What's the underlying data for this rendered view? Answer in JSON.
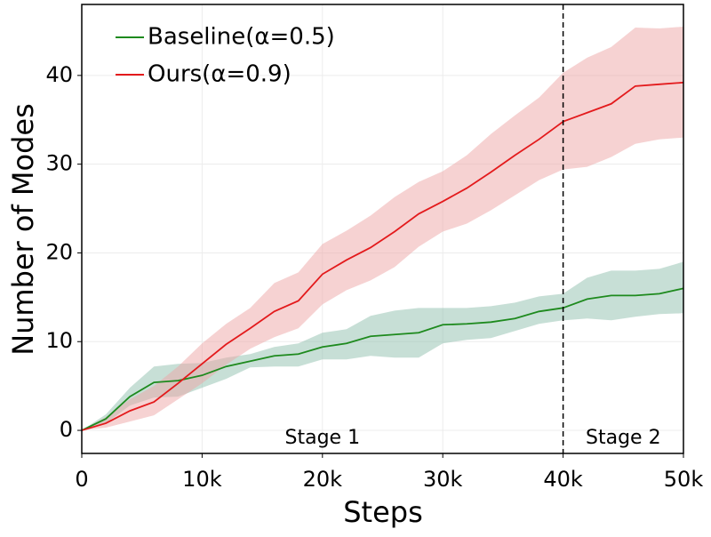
{
  "chart_data": {
    "type": "line_band",
    "xlabel": "Steps",
    "ylabel": "Number of Modes",
    "x": [
      0,
      2000,
      4000,
      6000,
      8000,
      10000,
      12000,
      14000,
      16000,
      18000,
      20000,
      22000,
      24000,
      26000,
      28000,
      30000,
      32000,
      34000,
      36000,
      38000,
      40000,
      42000,
      44000,
      46000,
      48000,
      50000
    ],
    "series": [
      {
        "name": "Baseline(α=0.5)",
        "color": "#1e8a1e",
        "band_color": "#8fbfae",
        "values": [
          0,
          1.3,
          3.8,
          5.4,
          5.6,
          6.2,
          7.2,
          7.8,
          8.4,
          8.6,
          9.4,
          9.8,
          10.6,
          10.8,
          11,
          11.9,
          12,
          12.2,
          12.6,
          13.4,
          13.8,
          14.8,
          15.2,
          15.2,
          15.4,
          16.0
        ],
        "upper": [
          0,
          1.8,
          4.8,
          7.2,
          7.5,
          7.6,
          8.2,
          8.6,
          9.4,
          9.8,
          11,
          11.4,
          12.9,
          13.5,
          13.8,
          13.8,
          13.8,
          14,
          14.4,
          15.1,
          15.4,
          17.2,
          18,
          18,
          18.2,
          19
        ],
        "lower": [
          0,
          0.8,
          2.8,
          3.7,
          3.8,
          4.8,
          5.8,
          7.1,
          7.2,
          7.2,
          8,
          8,
          8.4,
          8.2,
          8.2,
          9.8,
          10.2,
          10.4,
          11.2,
          12,
          12.4,
          12.6,
          12.4,
          12.8,
          13.1,
          13.2
        ]
      },
      {
        "name": "Ours(α=0.9)",
        "color": "#e31a1c",
        "band_color": "#eda5a5",
        "values": [
          0,
          0.8,
          2.2,
          3.2,
          5.3,
          7.5,
          9.7,
          11.5,
          13.4,
          14.6,
          17.6,
          19.2,
          20.6,
          22.4,
          24.4,
          25.8,
          27.3,
          29.1,
          31,
          32.8,
          34.8,
          35.8,
          36.8,
          38.8,
          39,
          39.2
        ],
        "upper": [
          0,
          1.5,
          3.5,
          5.0,
          7.2,
          9.8,
          12,
          13.8,
          16.6,
          17.8,
          21,
          22.5,
          24.2,
          26.3,
          28,
          29.2,
          31,
          33.4,
          35.5,
          37.5,
          40.3,
          42,
          43.2,
          45.4,
          45.3,
          45.5
        ],
        "lower": [
          0,
          0.3,
          1.0,
          1.7,
          3.5,
          5.3,
          7.4,
          9.2,
          10.5,
          11.5,
          14.2,
          15.8,
          16.9,
          18.4,
          20.7,
          22.4,
          23.3,
          24.8,
          26.5,
          28.2,
          29.4,
          29.7,
          30.8,
          32.3,
          32.8,
          33
        ]
      }
    ],
    "xlim": [
      0,
      50000
    ],
    "xticks": [
      {
        "value": 0,
        "label": "0"
      },
      {
        "value": 10000,
        "label": "10k"
      },
      {
        "value": 20000,
        "label": "20k"
      },
      {
        "value": 30000,
        "label": "30k"
      },
      {
        "value": 40000,
        "label": "40k"
      },
      {
        "value": 50000,
        "label": "50k"
      }
    ],
    "ylim": [
      -2.6,
      48
    ],
    "yticks": [
      0,
      10,
      20,
      30,
      40
    ],
    "grid": true,
    "legend": "upper-left",
    "vline": 40000,
    "annotations": [
      "Stage 1",
      "Stage 2"
    ]
  }
}
